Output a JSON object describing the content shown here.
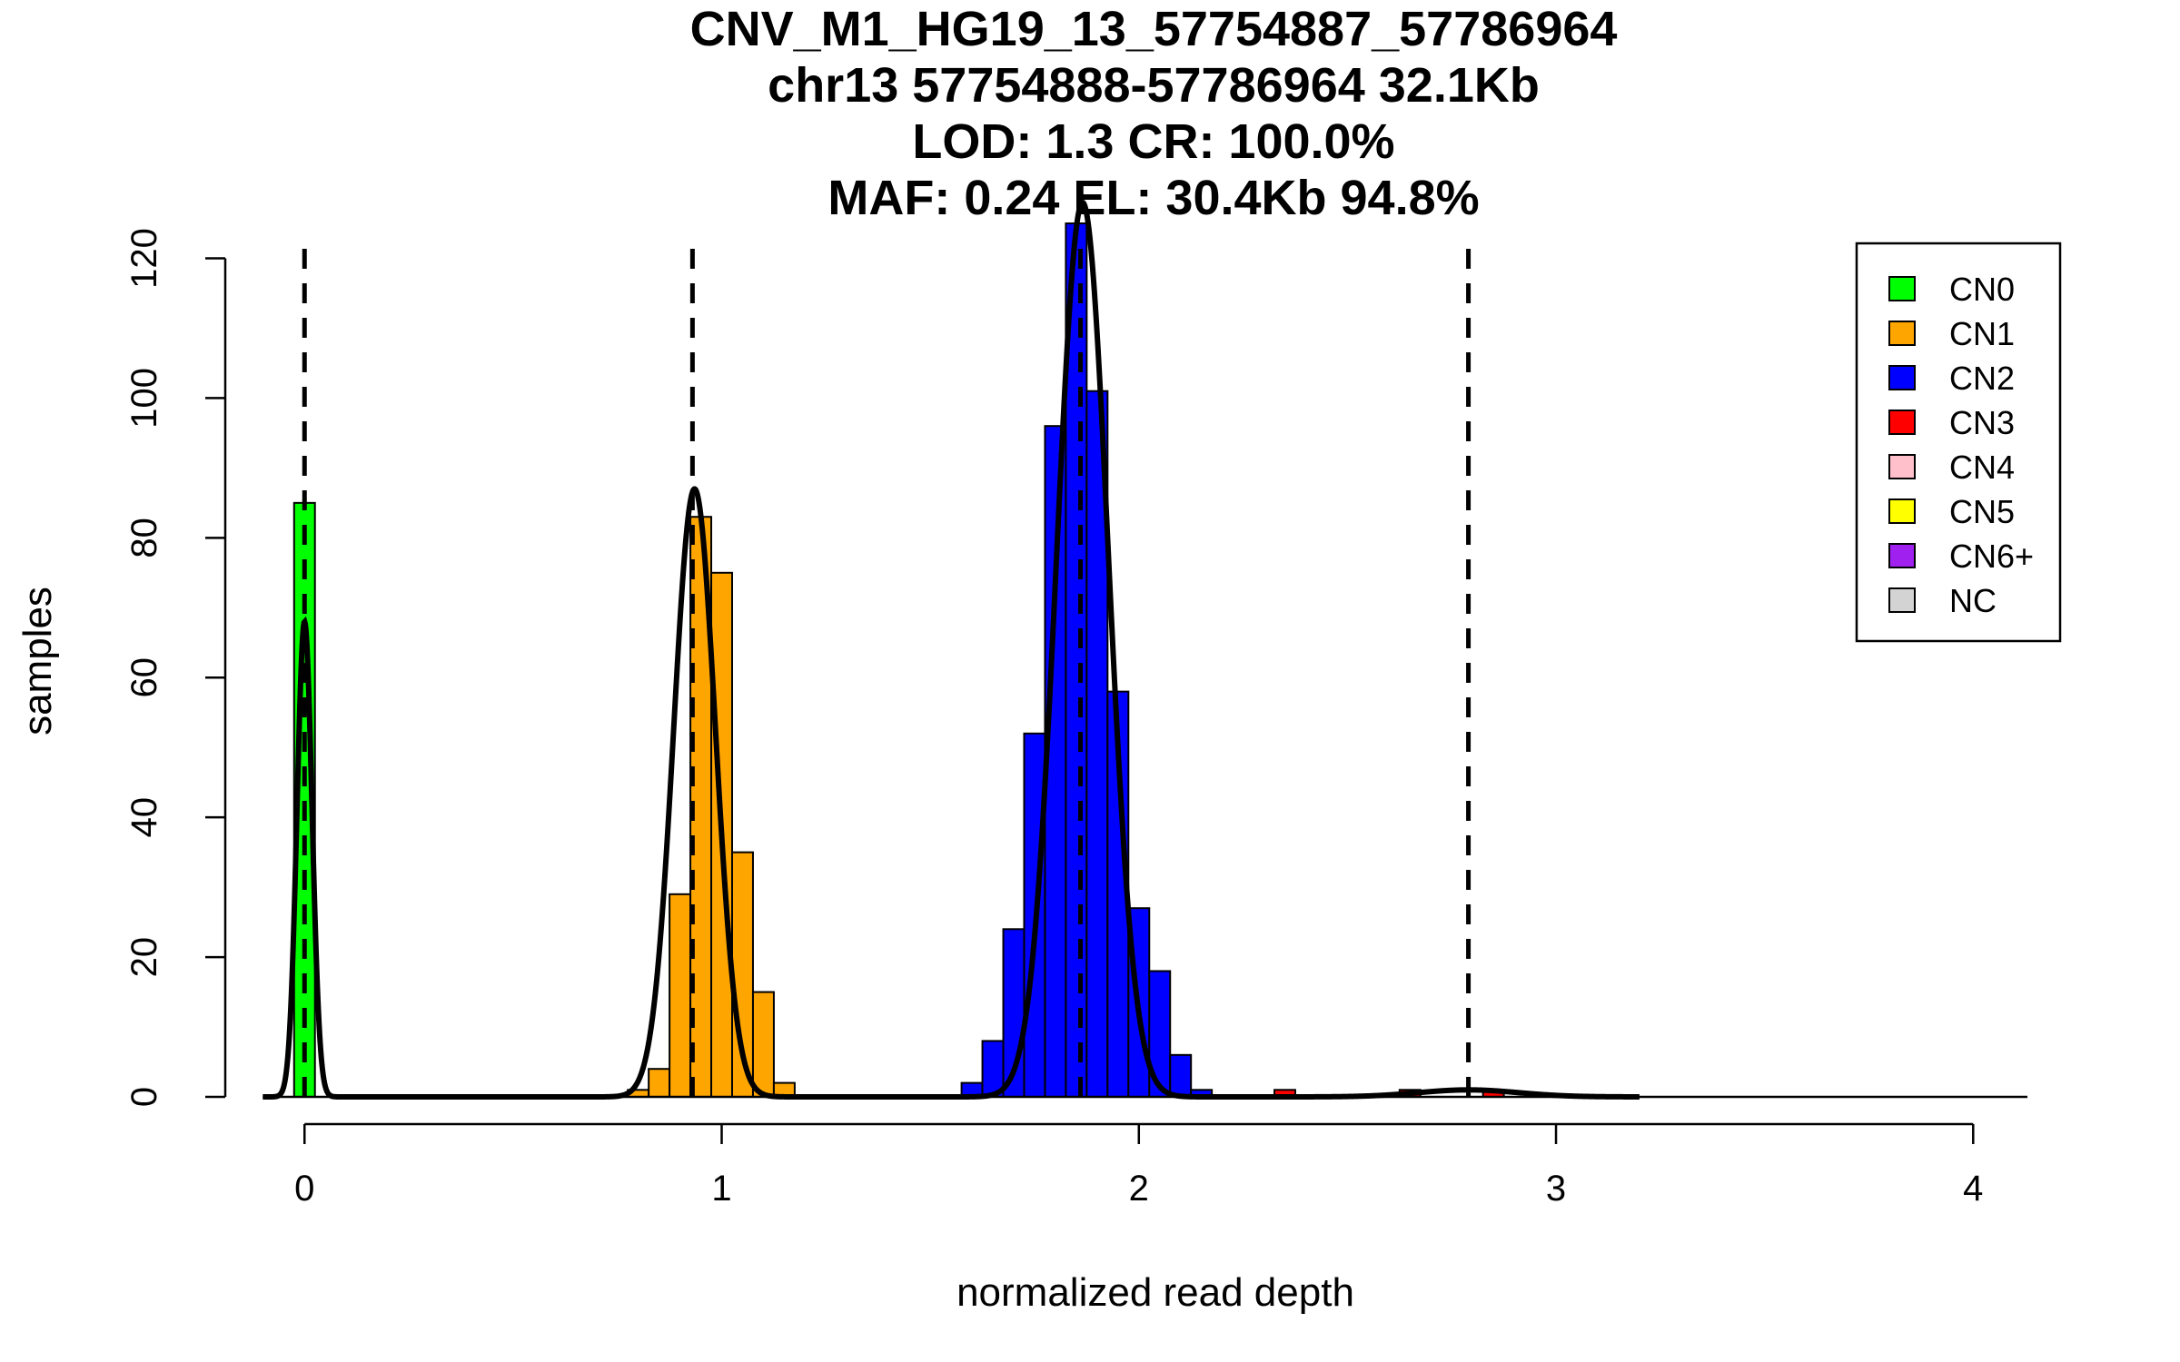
{
  "chart_data": {
    "type": "bar",
    "title_lines": [
      "CNV_M1_HG19_13_57754887_57786964",
      "chr13 57754888-57786964 32.1Kb",
      "LOD: 1.3 CR: 100.0%",
      "MAF: 0.24 EL: 30.4Kb 94.8%"
    ],
    "xlabel": "normalized read depth",
    "ylabel": "samples",
    "xlim": [
      -0.19,
      4.13
    ],
    "ylim": [
      0,
      125
    ],
    "x_ticks": [
      0,
      1,
      2,
      3,
      4
    ],
    "y_ticks": [
      0,
      20,
      40,
      60,
      80,
      100,
      120
    ],
    "bin_width": 0.05,
    "colors": {
      "CN0": "#00ff00",
      "CN1": "#ffa500",
      "CN2": "#0000ff",
      "CN3": "#ff0000",
      "CN4": "#ffc0cb",
      "CN5": "#ffff00",
      "CN6+": "#a020f0",
      "NC": "#d3d3d3"
    },
    "legend": {
      "position": "top-right",
      "entries": [
        "CN0",
        "CN1",
        "CN2",
        "CN3",
        "CN4",
        "CN5",
        "CN6+",
        "NC"
      ]
    },
    "series": [
      {
        "name": "CN0",
        "bins": [
          {
            "x0": -0.025,
            "count": 85
          }
        ]
      },
      {
        "name": "CN1",
        "bins": [
          {
            "x0": 0.775,
            "count": 1
          },
          {
            "x0": 0.825,
            "count": 4
          },
          {
            "x0": 0.875,
            "count": 29
          },
          {
            "x0": 0.925,
            "count": 83
          },
          {
            "x0": 0.975,
            "count": 75
          },
          {
            "x0": 1.025,
            "count": 35
          },
          {
            "x0": 1.075,
            "count": 15
          },
          {
            "x0": 1.125,
            "count": 2
          }
        ]
      },
      {
        "name": "CN2",
        "bins": [
          {
            "x0": 1.575,
            "count": 2
          },
          {
            "x0": 1.625,
            "count": 8
          },
          {
            "x0": 1.675,
            "count": 24
          },
          {
            "x0": 1.725,
            "count": 52
          },
          {
            "x0": 1.775,
            "count": 96
          },
          {
            "x0": 1.825,
            "count": 125
          },
          {
            "x0": 1.875,
            "count": 101
          },
          {
            "x0": 1.925,
            "count": 58
          },
          {
            "x0": 1.975,
            "count": 27
          },
          {
            "x0": 2.025,
            "count": 18
          },
          {
            "x0": 2.075,
            "count": 6
          },
          {
            "x0": 2.125,
            "count": 1
          }
        ]
      },
      {
        "name": "CN3",
        "bins": [
          {
            "x0": 2.325,
            "count": 1
          },
          {
            "x0": 2.625,
            "count": 1
          },
          {
            "x0": 2.825,
            "count": 1
          }
        ]
      }
    ],
    "dashed_lines_x": [
      0,
      0.93,
      1.86,
      2.79
    ],
    "fits": [
      {
        "mean": 0.0,
        "sd": 0.018,
        "peak": 68
      },
      {
        "mean": 0.935,
        "sd": 0.05,
        "peak": 87
      },
      {
        "mean": 1.865,
        "sd": 0.062,
        "peak": 128
      },
      {
        "mean": 2.79,
        "sd": 0.12,
        "peak": 1
      }
    ]
  }
}
